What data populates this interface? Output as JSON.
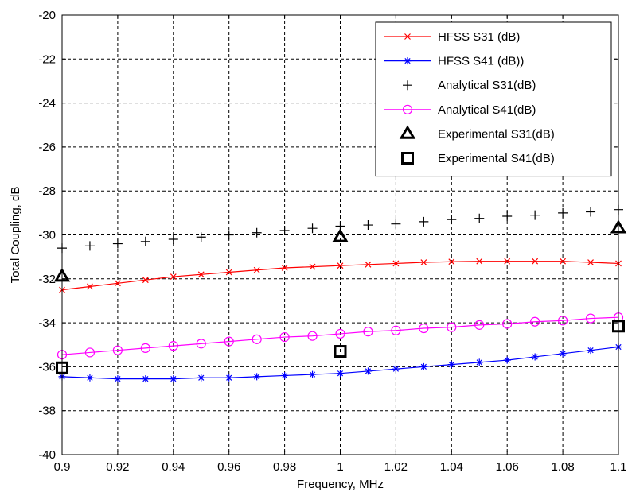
{
  "chart_data": {
    "type": "line",
    "xlabel": "Frequency, MHz",
    "ylabel": "Total Coupling, dB",
    "xlim": [
      0.9,
      1.1
    ],
    "ylim": [
      -40,
      -20
    ],
    "xticks": [
      0.9,
      0.92,
      0.94,
      0.96,
      0.98,
      1,
      1.02,
      1.04,
      1.06,
      1.08,
      1.1
    ],
    "yticks": [
      -40,
      -38,
      -36,
      -34,
      -32,
      -30,
      -28,
      -26,
      -24,
      -22,
      -20
    ],
    "xtick_labels": [
      "0.9",
      "0.92",
      "0.94",
      "0.96",
      "0.98",
      "1",
      "1.02",
      "1.04",
      "1.06",
      "1.08",
      "1.1"
    ],
    "ytick_labels": [
      "-40",
      "-38",
      "-36",
      "-34",
      "-32",
      "-30",
      "-28",
      "-26",
      "-24",
      "-22",
      "-20"
    ],
    "grid": true,
    "legend_position": "top-right",
    "series": [
      {
        "name": "HFSS S31 (dB)",
        "color": "#ff0000",
        "marker": "x",
        "line": true,
        "x": [
          0.9,
          0.91,
          0.92,
          0.93,
          0.94,
          0.95,
          0.96,
          0.97,
          0.98,
          0.99,
          1.0,
          1.01,
          1.02,
          1.03,
          1.04,
          1.05,
          1.06,
          1.07,
          1.08,
          1.09,
          1.1
        ],
        "y": [
          -32.5,
          -32.35,
          -32.2,
          -32.05,
          -31.9,
          -31.8,
          -31.7,
          -31.6,
          -31.5,
          -31.45,
          -31.4,
          -31.35,
          -31.3,
          -31.25,
          -31.22,
          -31.2,
          -31.2,
          -31.2,
          -31.2,
          -31.25,
          -31.3
        ]
      },
      {
        "name": "HFSS S41 (dB))",
        "color": "#0000ff",
        "marker": "asterisk",
        "line": true,
        "x": [
          0.9,
          0.91,
          0.92,
          0.93,
          0.94,
          0.95,
          0.96,
          0.97,
          0.98,
          0.99,
          1.0,
          1.01,
          1.02,
          1.03,
          1.04,
          1.05,
          1.06,
          1.07,
          1.08,
          1.09,
          1.1
        ],
        "y": [
          -36.45,
          -36.5,
          -36.55,
          -36.55,
          -36.55,
          -36.5,
          -36.5,
          -36.45,
          -36.4,
          -36.35,
          -36.3,
          -36.2,
          -36.1,
          -36.0,
          -35.9,
          -35.8,
          -35.7,
          -35.55,
          -35.4,
          -35.25,
          -35.1
        ]
      },
      {
        "name": "Analytical S31(dB)",
        "color": "#000000",
        "marker": "plus",
        "line": false,
        "x": [
          0.9,
          0.91,
          0.92,
          0.93,
          0.94,
          0.95,
          0.96,
          0.97,
          0.98,
          0.99,
          1.0,
          1.01,
          1.02,
          1.03,
          1.04,
          1.05,
          1.06,
          1.07,
          1.08,
          1.09,
          1.1
        ],
        "y": [
          -30.6,
          -30.5,
          -30.4,
          -30.3,
          -30.2,
          -30.1,
          -30.0,
          -29.9,
          -29.8,
          -29.7,
          -29.6,
          -29.55,
          -29.5,
          -29.4,
          -29.3,
          -29.25,
          -29.15,
          -29.1,
          -29.0,
          -28.95,
          -28.85
        ]
      },
      {
        "name": "Analytical S41(dB)",
        "color": "#ff00ff",
        "marker": "circle",
        "line": true,
        "x": [
          0.9,
          0.91,
          0.92,
          0.93,
          0.94,
          0.95,
          0.96,
          0.97,
          0.98,
          0.99,
          1.0,
          1.01,
          1.02,
          1.03,
          1.04,
          1.05,
          1.06,
          1.07,
          1.08,
          1.09,
          1.1
        ],
        "y": [
          -35.45,
          -35.35,
          -35.25,
          -35.15,
          -35.05,
          -34.95,
          -34.85,
          -34.75,
          -34.65,
          -34.6,
          -34.5,
          -34.4,
          -34.35,
          -34.25,
          -34.2,
          -34.1,
          -34.05,
          -33.95,
          -33.9,
          -33.8,
          -33.75
        ]
      },
      {
        "name": "Experimental S31(dB)",
        "color": "#000000",
        "marker": "triangle",
        "line": false,
        "x": [
          0.9,
          1.0,
          1.1
        ],
        "y": [
          -31.9,
          -30.1,
          -29.7
        ]
      },
      {
        "name": "Experimental S41(dB)",
        "color": "#000000",
        "marker": "square",
        "line": false,
        "x": [
          0.9,
          1.0,
          1.1
        ],
        "y": [
          -36.05,
          -35.3,
          -34.15
        ]
      }
    ]
  }
}
